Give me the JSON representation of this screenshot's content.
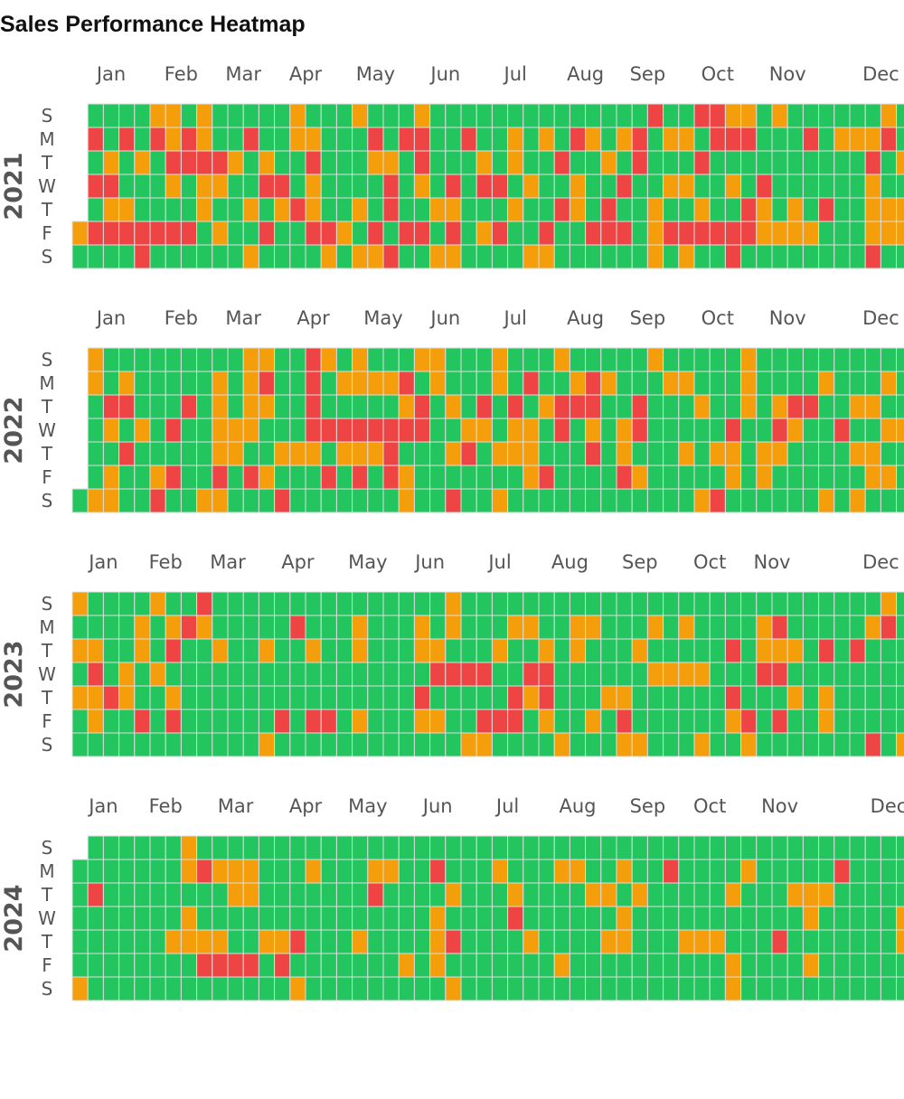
{
  "chart_data": {
    "type": "heatmap",
    "title": "Sales Performance Heatmap",
    "day_labels": [
      "S",
      "M",
      "T",
      "W",
      "T",
      "F",
      "S"
    ],
    "colors": {
      "low": "#ef4444",
      "mid": "#f59e0b",
      "high": "#22c55e",
      "grid": "#dddddd"
    },
    "value_scale": {
      "0": "low (red)",
      "1": "mid (orange)",
      "2": "high (green)"
    },
    "grid": true,
    "legend": "none",
    "years": [
      {
        "year": "2021",
        "months": [
          "Jan",
          "Feb",
          "Mar",
          "Apr",
          "May",
          "Jun",
          "Jul",
          "Aug",
          "Sep",
          "Oct",
          "Nov",
          "Dec"
        ],
        "rows": [
          "-2222112122222122212221222222222222220220011212222221222",
          "-0202010122022112220200220221212012102112000222021110212",
          "-2121200001212202221120222121220221202220222222222202111",
          "-0022212112200212222021202002122122022112212022222212202",
          "-2112222122121012212022112221220120221221220121202211111",
          "1000000021220220012020020210220220002100000011112221112",
          "22220222222122221211022112222112222221212202222222202222"
        ]
      },
      {
        "year": "2022",
        "months": [
          "Jan",
          "Feb",
          "Mar",
          "Apr",
          "May",
          "Jun",
          "Jul",
          "Aug",
          "Sep",
          "Oct",
          "Nov",
          "Dec"
        ],
        "rows": [
          "-1222222222112201212221122212221222221222221222222222222",
          "-1212222212102202111102122212022101222112221222212221212",
          "-2002220212112202222210212020210002202221221210022112222",
          "-2121202211122200000000221121120212102222202201220221122",
          "-2202222211221112111022210211122202122212112112222112222",
          "-2122102202012220202012222222102222012222212122222211212",
          "21122022112220222222212202212222222222221022222212122222"
        ]
      },
      {
        "year": "2023",
        "months": [
          "Jan",
          "Feb",
          "Mar",
          "Apr",
          "May",
          "Jun",
          "Jul",
          "Aug",
          "Sep",
          "Oct",
          "Nov",
          "Dec"
        ],
        "rows": [
          "122221220222222222222222122222222222222222222222222212222",
          "22221210122222022212221212221122112221212222102222210211-",
          "11221202212212212212221122212212122212222202111202022222-",
          "20212122222222222222222000022002222221111222002222222222-",
          "11012212222222222222220222220102221122222202221212222221-",
          "21220202222220200212221122000212212022222210202212222222-",
          "22222222222212222222222221122221222112221221222222202122-"
        ]
      },
      {
        "year": "2024",
        "months": [
          "Jan",
          "Feb",
          "Mar",
          "Apr",
          "May",
          "Jun",
          "Jul",
          "Aug",
          "Sep",
          "Oct",
          "Nov",
          "Dec"
        ],
        "rows": [
          "-22222212222222222222222222222222222222222222222222222222",
          "22222221011122212221122022212221122122022221222220222222",
          "20222222221122222220222212221222211212222212221112222222",
          "2222222122222222222222212222022222212222222222212222211-",
          "2222221111221102221222210222212222112221112220222222212-",
          "2222222200002022222221212222222122222222221222212222222-",
          "1222222222222212222222221222222222222222221222222222222-"
        ]
      }
    ]
  }
}
